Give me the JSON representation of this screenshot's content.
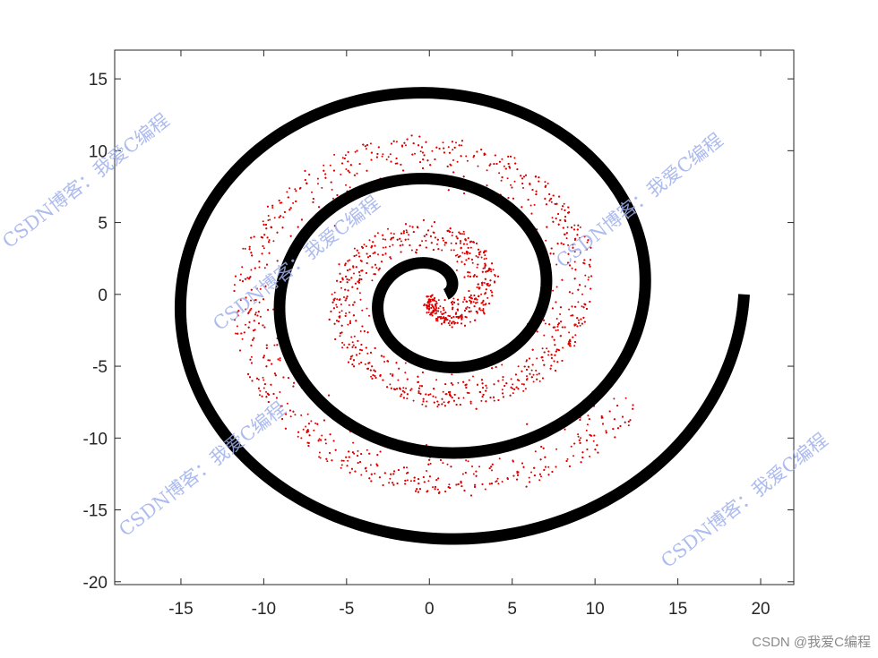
{
  "chart_data": {
    "type": "scatter",
    "title": "",
    "xlabel": "",
    "ylabel": "",
    "xlim": [
      -19,
      22
    ],
    "ylim": [
      -20.2,
      17
    ],
    "xticks": [
      -15,
      -10,
      -5,
      0,
      5,
      10,
      15,
      20
    ],
    "yticks": [
      -20,
      -15,
      -10,
      -5,
      0,
      5,
      10,
      15
    ],
    "grid": false,
    "legend": "none",
    "series": [
      {
        "kind": "spiral-curve",
        "color": "#000000",
        "description_center": [
          0.5,
          0
        ],
        "turns": 3,
        "outer_end": [
          19,
          0
        ],
        "inner_radius": 0.5,
        "thickness_data_units": 0.7
      },
      {
        "kind": "scatter-points",
        "color": "#e00000",
        "point_count": 4200,
        "follows": "spiral inside the black curve"
      }
    ]
  },
  "watermarks": [
    "CSDN博客：我爱C编程",
    "CSDN博客：我爱C编程",
    "CSDN博客：我爱C编程",
    "CSDN博客：我爱C编程",
    "CSDN博客：我爱C编程"
  ],
  "credit": "CSDN @我爱C编程",
  "colors": {
    "axis": "#262626",
    "spiral": "#000000",
    "points": "#e00000",
    "watermark": "#9fb0ec"
  }
}
